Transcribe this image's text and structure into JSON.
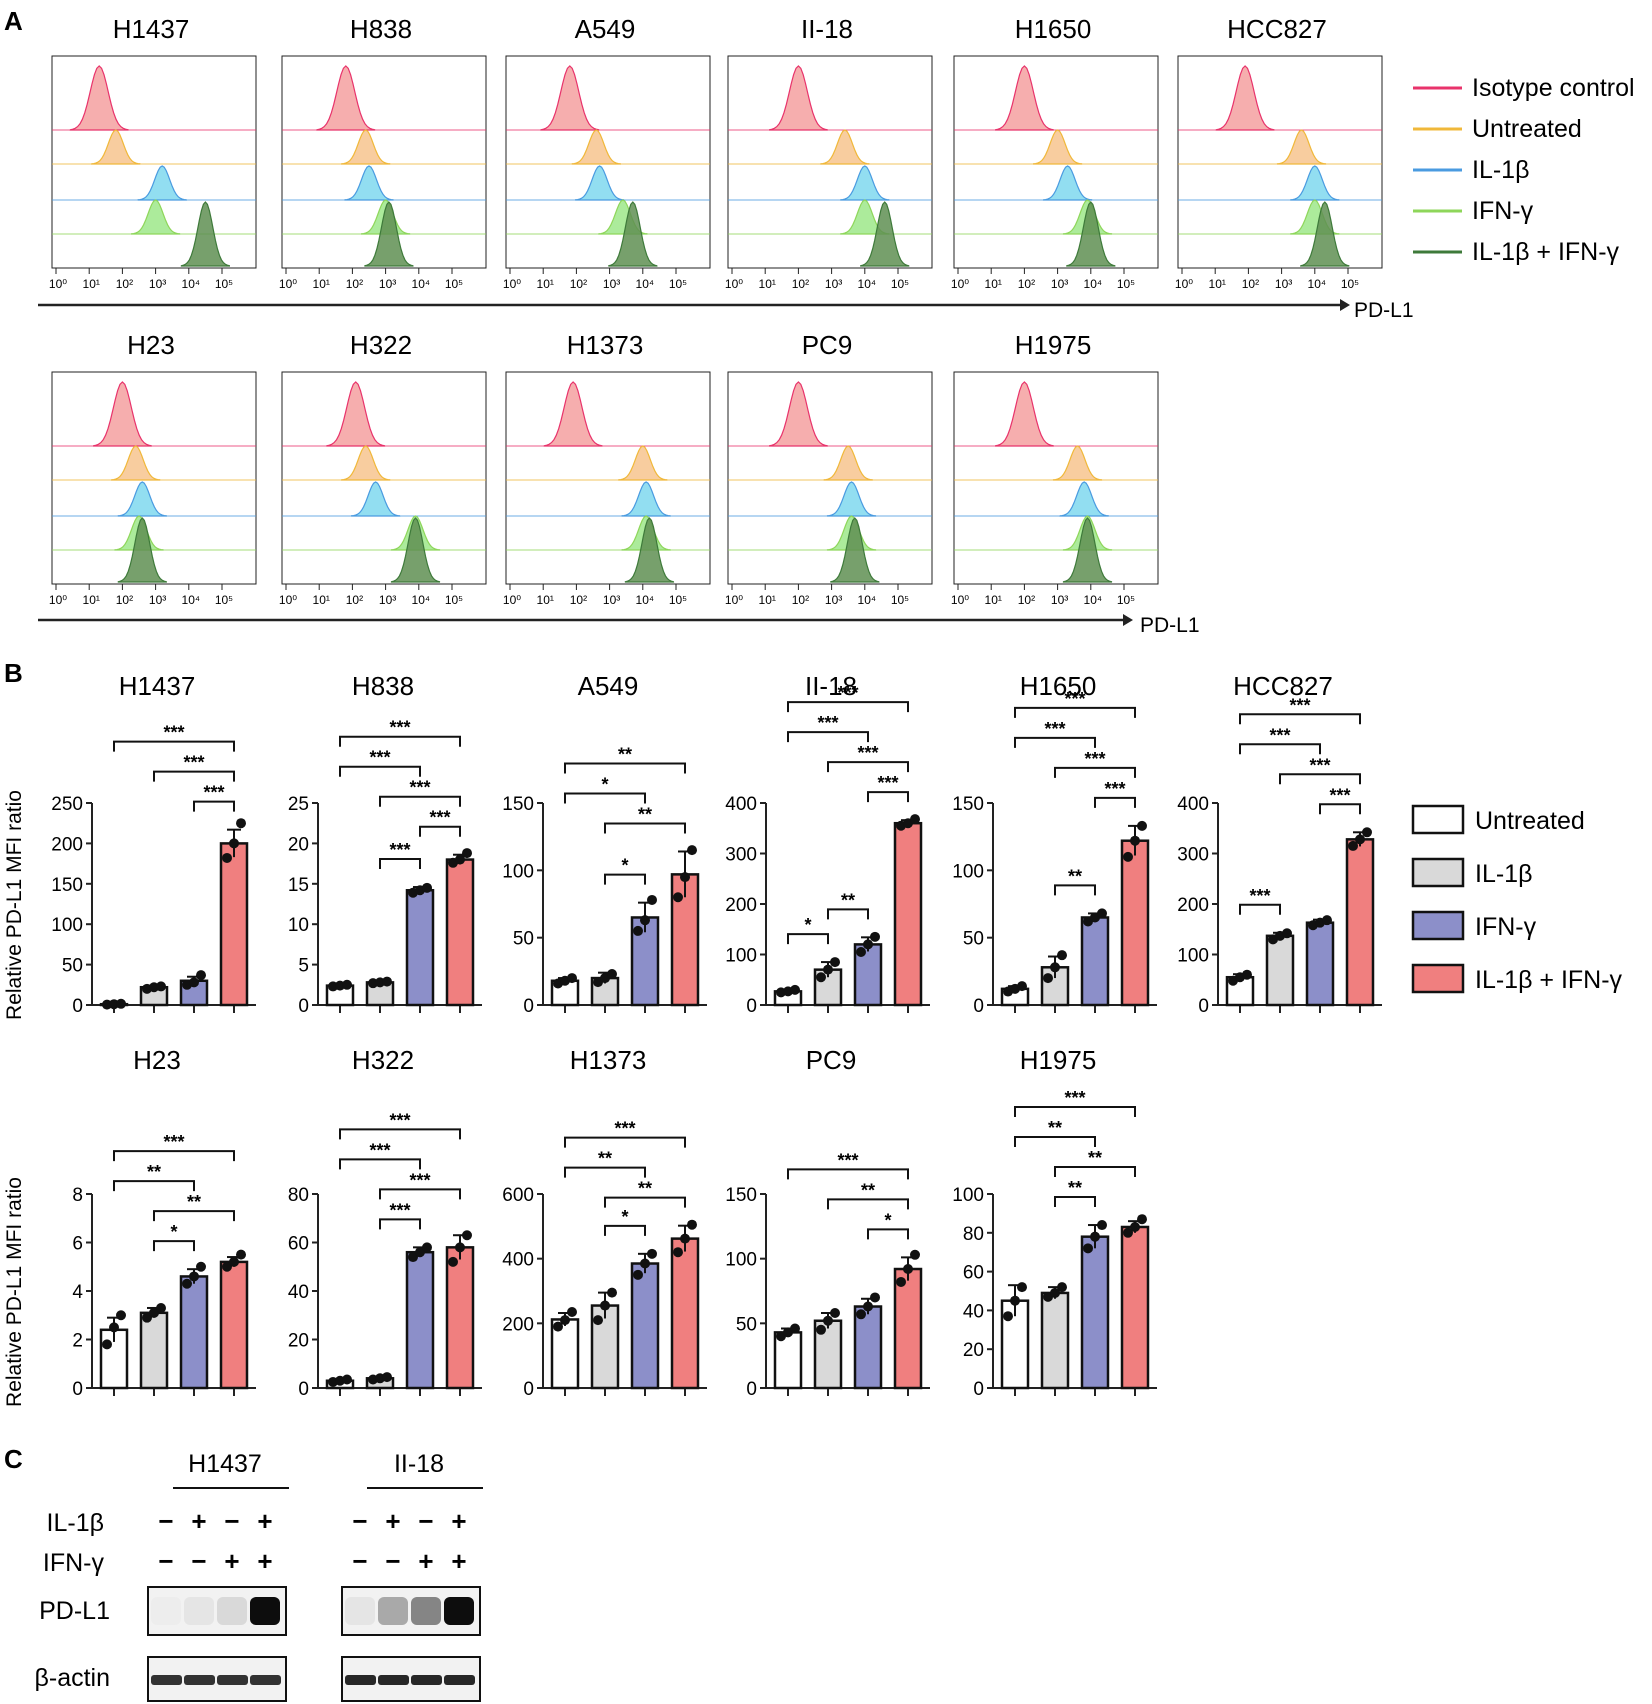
{
  "panel_labels": {
    "a": "A",
    "b": "B",
    "c": "C"
  },
  "colors": {
    "isotype": "#e8336b",
    "untreated": "#f0b83a",
    "il1b": "#4a9be0",
    "ifng": "#8ed65a",
    "combo": "#3e7a3a",
    "fill_isotype": "#f5a0a0",
    "fill_untreated": "#f7c48e",
    "fill_il1b": "#7fd8ee",
    "fill_ifng": "#9ee88a",
    "fill_combo": "#5f8f52",
    "bar_untreated": "#ffffff",
    "bar_il1b": "#d9d9d9",
    "bar_ifng": "#8c8fc9",
    "bar_combo": "#f07f7f"
  },
  "flow": {
    "axis_label": "PD-L1",
    "ticks": [
      "10⁰",
      "10¹",
      "10²",
      "10³",
      "10⁴",
      "10⁵"
    ],
    "legend": [
      {
        "label": "Isotype control",
        "key": "isotype"
      },
      {
        "label": "Untreated",
        "key": "untreated"
      },
      {
        "label": "IL-1β",
        "key": "il1b"
      },
      {
        "label": "IFN-γ",
        "key": "ifng"
      },
      {
        "label": "IL-1β + IFN-γ",
        "key": "combo"
      }
    ]
  },
  "bars": {
    "ylabel": "Relative PD-L1 MFI ratio",
    "legend": [
      {
        "label": "Untreated",
        "key": "bar_untreated"
      },
      {
        "label": "IL-1β",
        "key": "bar_il1b"
      },
      {
        "label": "IFN-γ",
        "key": "bar_ifng"
      },
      {
        "label": "IL-1β + IFN-γ",
        "key": "bar_combo"
      }
    ]
  },
  "chart_data": [
    {
      "type": "histogram",
      "panel": "A",
      "title": "H1437",
      "log_peaks": [
        1.3,
        1.8,
        3.2,
        3.0,
        4.5
      ]
    },
    {
      "type": "histogram",
      "panel": "A",
      "title": "H838",
      "log_peaks": [
        1.8,
        2.4,
        2.5,
        3.0,
        3.1
      ]
    },
    {
      "type": "histogram",
      "panel": "A",
      "title": "A549",
      "log_peaks": [
        1.8,
        2.6,
        2.7,
        3.4,
        3.7
      ]
    },
    {
      "type": "histogram",
      "panel": "A",
      "title": "II-18",
      "log_peaks": [
        2.0,
        3.4,
        4.0,
        4.0,
        4.6
      ]
    },
    {
      "type": "histogram",
      "panel": "A",
      "title": "H1650",
      "log_peaks": [
        2.0,
        3.0,
        3.3,
        3.9,
        4.0
      ]
    },
    {
      "type": "histogram",
      "panel": "A",
      "title": "HCC827",
      "log_peaks": [
        1.9,
        3.6,
        4.0,
        4.0,
        4.3
      ]
    },
    {
      "type": "histogram",
      "panel": "A",
      "title": "H23",
      "log_peaks": [
        2.0,
        2.4,
        2.6,
        2.5,
        2.6
      ]
    },
    {
      "type": "histogram",
      "panel": "A",
      "title": "H322",
      "log_peaks": [
        2.1,
        2.4,
        2.7,
        3.9,
        3.9
      ]
    },
    {
      "type": "histogram",
      "panel": "A",
      "title": "H1373",
      "log_peaks": [
        1.9,
        4.0,
        4.1,
        4.1,
        4.2
      ]
    },
    {
      "type": "histogram",
      "panel": "A",
      "title": "PC9",
      "log_peaks": [
        2.0,
        3.5,
        3.6,
        3.6,
        3.7
      ]
    },
    {
      "type": "histogram",
      "panel": "A",
      "title": "H1975",
      "log_peaks": [
        2.0,
        3.6,
        3.8,
        3.9,
        3.9
      ]
    },
    {
      "type": "bar",
      "panel": "B",
      "title": "H1437",
      "categories": [
        "Untreated",
        "IL-1β",
        "IFN-γ",
        "IL-1β + IFN-γ"
      ],
      "values": [
        1,
        22,
        30,
        200
      ],
      "errors": [
        0.5,
        2,
        5,
        17
      ],
      "ylim": [
        0,
        250
      ],
      "yticks": [
        0,
        50,
        100,
        150,
        200,
        250
      ],
      "points": [
        [
          0.5,
          1,
          1.5
        ],
        [
          20,
          22,
          23
        ],
        [
          25,
          28,
          37
        ],
        [
          182,
          200,
          225
        ]
      ],
      "sig": [
        {
          "a": 0,
          "b": 3,
          "label": "***"
        },
        {
          "a": 1,
          "b": 3,
          "label": "***"
        },
        {
          "a": 2,
          "b": 3,
          "label": "***"
        }
      ]
    },
    {
      "type": "bar",
      "panel": "B",
      "title": "H838",
      "categories": [
        "Untreated",
        "IL-1β",
        "IFN-γ",
        "IL-1β + IFN-γ"
      ],
      "values": [
        2.4,
        2.8,
        14.2,
        18.0
      ],
      "errors": [
        0.1,
        0.1,
        0.4,
        0.6
      ],
      "ylim": [
        0,
        25
      ],
      "yticks": [
        0,
        5,
        10,
        15,
        20,
        25
      ],
      "points": [
        [
          2.3,
          2.4,
          2.5
        ],
        [
          2.7,
          2.8,
          2.9
        ],
        [
          13.9,
          14.2,
          14.5
        ],
        [
          17.6,
          18.0,
          18.8
        ]
      ],
      "sig": [
        {
          "a": 0,
          "b": 3,
          "label": "***"
        },
        {
          "a": 1,
          "b": 3,
          "label": "***"
        },
        {
          "a": 0,
          "b": 2,
          "label": "***"
        },
        {
          "a": 2,
          "b": 3,
          "label": "***"
        },
        {
          "a": 1,
          "b": 2,
          "label": "***"
        }
      ]
    },
    {
      "type": "bar",
      "panel": "B",
      "title": "A549",
      "categories": [
        "Untreated",
        "IL-1β",
        "IFN-γ",
        "IL-1β + IFN-γ"
      ],
      "values": [
        18,
        20,
        65,
        97
      ],
      "errors": [
        2,
        4,
        11,
        17
      ],
      "ylim": [
        0,
        150
      ],
      "yticks": [
        0,
        50,
        100,
        150
      ],
      "points": [
        [
          16,
          18,
          20
        ],
        [
          17,
          20,
          23
        ],
        [
          55,
          63,
          78
        ],
        [
          80,
          95,
          115
        ]
      ],
      "sig": [
        {
          "a": 0,
          "b": 3,
          "label": "**"
        },
        {
          "a": 1,
          "b": 3,
          "label": "**"
        },
        {
          "a": 0,
          "b": 2,
          "label": "*"
        },
        {
          "a": 1,
          "b": 2,
          "label": "*"
        }
      ]
    },
    {
      "type": "bar",
      "panel": "B",
      "title": "II-18",
      "categories": [
        "Untreated",
        "IL-1β",
        "IFN-γ",
        "IL-1β + IFN-γ"
      ],
      "values": [
        27,
        70,
        120,
        360
      ],
      "errors": [
        2,
        15,
        14,
        6
      ],
      "ylim": [
        0,
        400
      ],
      "yticks": [
        0,
        100,
        200,
        300,
        400
      ],
      "points": [
        [
          25,
          27,
          30
        ],
        [
          55,
          70,
          85
        ],
        [
          105,
          120,
          135
        ],
        [
          355,
          360,
          368
        ]
      ],
      "sig": [
        {
          "a": 0,
          "b": 3,
          "label": "***"
        },
        {
          "a": 1,
          "b": 3,
          "label": "***"
        },
        {
          "a": 2,
          "b": 3,
          "label": "***"
        },
        {
          "a": 0,
          "b": 2,
          "label": "***"
        },
        {
          "a": 0,
          "b": 1,
          "label": "*"
        },
        {
          "a": 1,
          "b": 2,
          "label": "**"
        }
      ]
    },
    {
      "type": "bar",
      "panel": "B",
      "title": "H1650",
      "categories": [
        "Untreated",
        "IL-1β",
        "IFN-γ",
        "IL-1β + IFN-γ"
      ],
      "values": [
        12,
        28,
        65,
        122
      ],
      "errors": [
        2,
        8,
        3,
        11
      ],
      "ylim": [
        0,
        150
      ],
      "yticks": [
        0,
        50,
        100,
        150
      ],
      "points": [
        [
          10,
          12,
          14
        ],
        [
          20,
          28,
          37
        ],
        [
          62,
          65,
          68
        ],
        [
          110,
          122,
          133
        ]
      ],
      "sig": [
        {
          "a": 0,
          "b": 3,
          "label": "***"
        },
        {
          "a": 1,
          "b": 3,
          "label": "***"
        },
        {
          "a": 0,
          "b": 2,
          "label": "***"
        },
        {
          "a": 2,
          "b": 3,
          "label": "***"
        },
        {
          "a": 1,
          "b": 2,
          "label": "**"
        }
      ]
    },
    {
      "type": "bar",
      "panel": "B",
      "title": "HCC827",
      "categories": [
        "Untreated",
        "IL-1β",
        "IFN-γ",
        "IL-1β + IFN-γ"
      ],
      "values": [
        55,
        137,
        163,
        328
      ],
      "errors": [
        6,
        6,
        6,
        14
      ],
      "ylim": [
        0,
        400
      ],
      "yticks": [
        0,
        100,
        200,
        300,
        400
      ],
      "points": [
        [
          48,
          55,
          60
        ],
        [
          130,
          137,
          142
        ],
        [
          158,
          163,
          168
        ],
        [
          315,
          328,
          342
        ]
      ],
      "sig": [
        {
          "a": 0,
          "b": 3,
          "label": "***"
        },
        {
          "a": 1,
          "b": 3,
          "label": "***"
        },
        {
          "a": 2,
          "b": 3,
          "label": "***"
        },
        {
          "a": 0,
          "b": 2,
          "label": "***"
        },
        {
          "a": 0,
          "b": 1,
          "label": "***"
        }
      ]
    },
    {
      "type": "bar",
      "panel": "B",
      "title": "H23",
      "categories": [
        "Untreated",
        "IL-1β",
        "IFN-γ",
        "IL-1β + IFN-γ"
      ],
      "values": [
        2.4,
        3.1,
        4.6,
        5.2
      ],
      "errors": [
        0.5,
        0.2,
        0.3,
        0.2
      ],
      "ylim": [
        0,
        8
      ],
      "yticks": [
        0,
        2,
        4,
        6,
        8
      ],
      "points": [
        [
          1.8,
          2.5,
          3.0
        ],
        [
          2.9,
          3.1,
          3.3
        ],
        [
          4.3,
          4.6,
          5.0
        ],
        [
          5.0,
          5.2,
          5.5
        ]
      ],
      "sig": [
        {
          "a": 0,
          "b": 3,
          "label": "***"
        },
        {
          "a": 1,
          "b": 3,
          "label": "**"
        },
        {
          "a": 0,
          "b": 2,
          "label": "**"
        },
        {
          "a": 1,
          "b": 2,
          "label": "*"
        }
      ]
    },
    {
      "type": "bar",
      "panel": "B",
      "title": "H322",
      "categories": [
        "Untreated",
        "IL-1β",
        "IFN-γ",
        "IL-1β + IFN-γ"
      ],
      "values": [
        3,
        4,
        56,
        58
      ],
      "errors": [
        0.5,
        0.5,
        2,
        5
      ],
      "ylim": [
        0,
        80
      ],
      "yticks": [
        0,
        20,
        40,
        60,
        80
      ],
      "points": [
        [
          2.5,
          3,
          3.5
        ],
        [
          3.5,
          4,
          4.5
        ],
        [
          54,
          56,
          58
        ],
        [
          52,
          58,
          63
        ]
      ],
      "sig": [
        {
          "a": 0,
          "b": 3,
          "label": "***"
        },
        {
          "a": 1,
          "b": 3,
          "label": "***"
        },
        {
          "a": 0,
          "b": 2,
          "label": "***"
        },
        {
          "a": 1,
          "b": 2,
          "label": "***"
        }
      ]
    },
    {
      "type": "bar",
      "panel": "B",
      "title": "H1373",
      "categories": [
        "Untreated",
        "IL-1β",
        "IFN-γ",
        "IL-1β + IFN-γ"
      ],
      "values": [
        212,
        255,
        385,
        462
      ],
      "errors": [
        20,
        40,
        30,
        40
      ],
      "ylim": [
        0,
        600
      ],
      "yticks": [
        0,
        200,
        400,
        600
      ],
      "points": [
        [
          190,
          210,
          235
        ],
        [
          210,
          255,
          295
        ],
        [
          350,
          385,
          415
        ],
        [
          420,
          462,
          505
        ]
      ],
      "sig": [
        {
          "a": 0,
          "b": 3,
          "label": "***"
        },
        {
          "a": 1,
          "b": 3,
          "label": "**"
        },
        {
          "a": 0,
          "b": 2,
          "label": "**"
        },
        {
          "a": 1,
          "b": 2,
          "label": "*"
        }
      ]
    },
    {
      "type": "bar",
      "panel": "B",
      "title": "PC9",
      "categories": [
        "Untreated",
        "IL-1β",
        "IFN-γ",
        "IL-1β + IFN-γ"
      ],
      "values": [
        43,
        52,
        63,
        92
      ],
      "errors": [
        3,
        6,
        6,
        9
      ],
      "ylim": [
        0,
        150
      ],
      "yticks": [
        0,
        50,
        100,
        150
      ],
      "points": [
        [
          40,
          43,
          46
        ],
        [
          45,
          52,
          58
        ],
        [
          57,
          63,
          70
        ],
        [
          82,
          92,
          103
        ]
      ],
      "sig": [
        {
          "a": 0,
          "b": 3,
          "label": "***"
        },
        {
          "a": 1,
          "b": 3,
          "label": "**"
        },
        {
          "a": 2,
          "b": 3,
          "label": "*"
        }
      ]
    },
    {
      "type": "bar",
      "panel": "B",
      "title": "H1975",
      "categories": [
        "Untreated",
        "IL-1β",
        "IFN-γ",
        "IL-1β + IFN-γ"
      ],
      "values": [
        45,
        49,
        78,
        83
      ],
      "errors": [
        8,
        3,
        6,
        3
      ],
      "ylim": [
        0,
        100
      ],
      "yticks": [
        0,
        20,
        40,
        60,
        80,
        100
      ],
      "points": [
        [
          37,
          45,
          52
        ],
        [
          47,
          49,
          52
        ],
        [
          72,
          78,
          84
        ],
        [
          80,
          83,
          87
        ]
      ],
      "sig": [
        {
          "a": 0,
          "b": 3,
          "label": "***"
        },
        {
          "a": 1,
          "b": 3,
          "label": "**"
        },
        {
          "a": 0,
          "b": 2,
          "label": "**"
        },
        {
          "a": 1,
          "b": 2,
          "label": "**"
        }
      ]
    }
  ],
  "blot": {
    "cells": [
      "H1437",
      "II-18"
    ],
    "row_labels": [
      "IL-1β",
      "IFN-γ"
    ],
    "il1b_signs": [
      "−",
      "+",
      "−",
      "+"
    ],
    "ifng_signs": [
      "−",
      "−",
      "+",
      "+"
    ],
    "bands": [
      "PD-L1",
      "β-actin"
    ],
    "pdl1_intensity": [
      [
        0.02,
        0.05,
        0.1,
        0.95
      ],
      [
        0.05,
        0.3,
        0.45,
        0.95
      ]
    ],
    "actin_intensity": [
      [
        0.85,
        0.85,
        0.85,
        0.85
      ],
      [
        0.9,
        0.9,
        0.9,
        0.9
      ]
    ]
  }
}
